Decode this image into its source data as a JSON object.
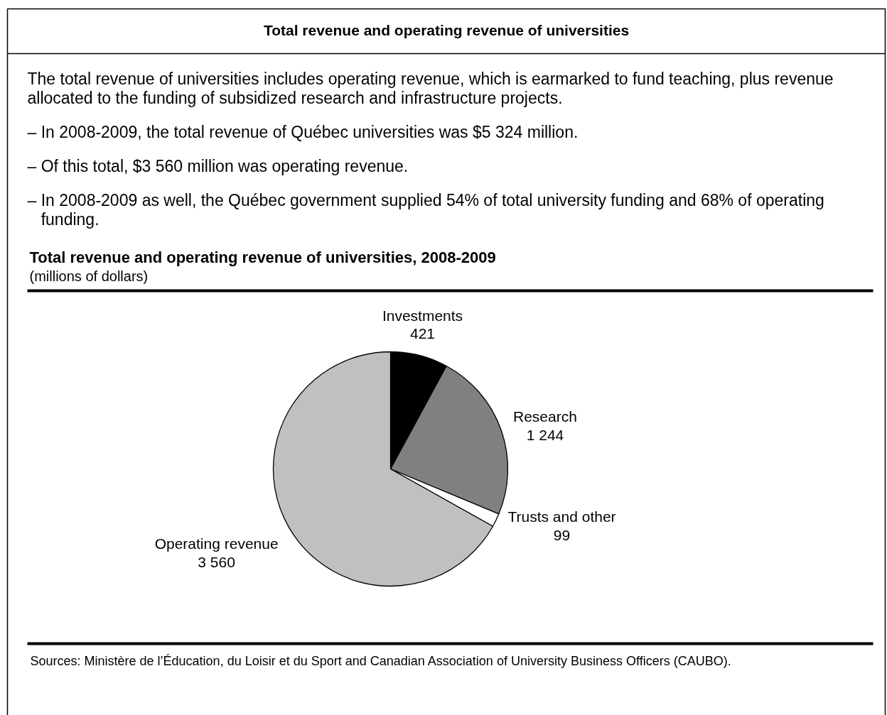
{
  "chart_data": {
    "type": "pie",
    "title": "Total revenue and operating revenue of universities, 2008-2009",
    "subtitle": "(millions of dollars)",
    "categories": [
      "Investments",
      "Research",
      "Trusts and other",
      "Operating revenue"
    ],
    "values": [
      421,
      1244,
      99,
      3560
    ],
    "colors": [
      "#000000",
      "#808080",
      "#ffffff",
      "#c0c0c0"
    ],
    "value_labels": [
      "421",
      "1 244",
      "99",
      "3 560"
    ],
    "annotations": [
      "Total revenue and operating revenue of universities",
      "The total revenue of universities includes operating revenue, which is earmarked to fund teaching, plus revenue allocated to the funding of subsidized research and infrastructure projects.",
      "– In 2008-2009, the total revenue of Québec universities was $5 324 million.",
      "– Of this total, $3 560 million was operating revenue.",
      "– In 2008-2009 as well, the Québec government supplied 54% of total university funding and 68% of operating funding.",
      "Sources: Ministère de l’Éducation, du Loisir et du Sport and Canadian Association of University Business Officers (CAUBO)."
    ]
  }
}
